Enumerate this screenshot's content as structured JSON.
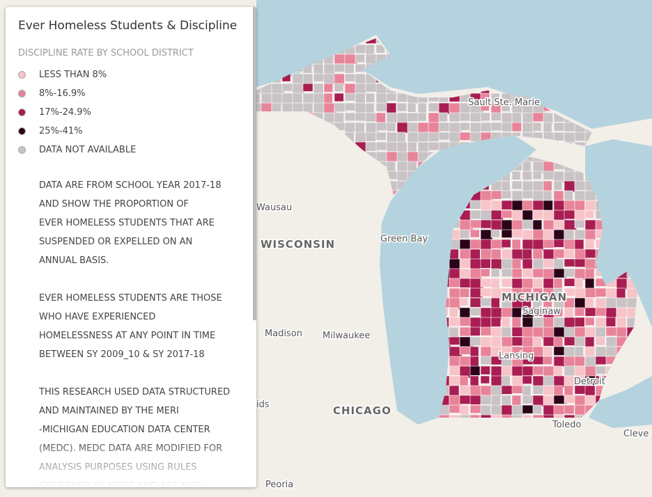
{
  "panel": {
    "title": "Ever Homeless Students & Discipline"
  },
  "legend": {
    "heading": "DISCIPLINE RATE BY SCHOOL DISTRICT",
    "items": [
      {
        "label": "LESS THAN 8%",
        "color": "#f7c4c9"
      },
      {
        "label": "8%-16.9%",
        "color": "#e8849a"
      },
      {
        "label": "17%-24.9%",
        "color": "#a81d52"
      },
      {
        "label": "25%-41%",
        "color": "#2b0318"
      },
      {
        "label": "DATA NOT AVAILABLE",
        "color": "#c9c3c5"
      }
    ]
  },
  "notes": [
    [
      "DATA ARE FROM SCHOOL YEAR 2017-18",
      "AND SHOW THE PROPORTION OF",
      "EVER HOMELESS STUDENTS THAT ARE",
      "SUSPENDED OR EXPELLED ON AN",
      "ANNUAL BASIS."
    ],
    [
      "EVER HOMELESS STUDENTS ARE THOSE",
      "WHO HAVE EXPERIENCED",
      "HOMELESSNESS AT ANY POINT IN TIME",
      "BETWEEN SY 2009_10 & SY 2017-18"
    ],
    [
      "THIS RESEARCH USED DATA STRUCTURED",
      "AND MAINTAINED BY THE MERI",
      "-MICHIGAN EDUCATION DATA CENTER",
      "(MEDC). MEDC DATA ARE MODIFIED FOR",
      "ANALYSIS PURPOSES USING RULES",
      "GOVERNED BY MEDC AND ARE NOT"
    ]
  ],
  "map": {
    "labels": [
      "Sault Ste. Marie",
      "Wausau",
      "WISCONSIN",
      "Green Bay",
      "MICHIGAN",
      "Saginaw",
      "Madison",
      "Milwaukee",
      "Lansing",
      "Detroit",
      "CHICAGO",
      "Toledo",
      "Cleve",
      "Peoria",
      "ids"
    ]
  }
}
